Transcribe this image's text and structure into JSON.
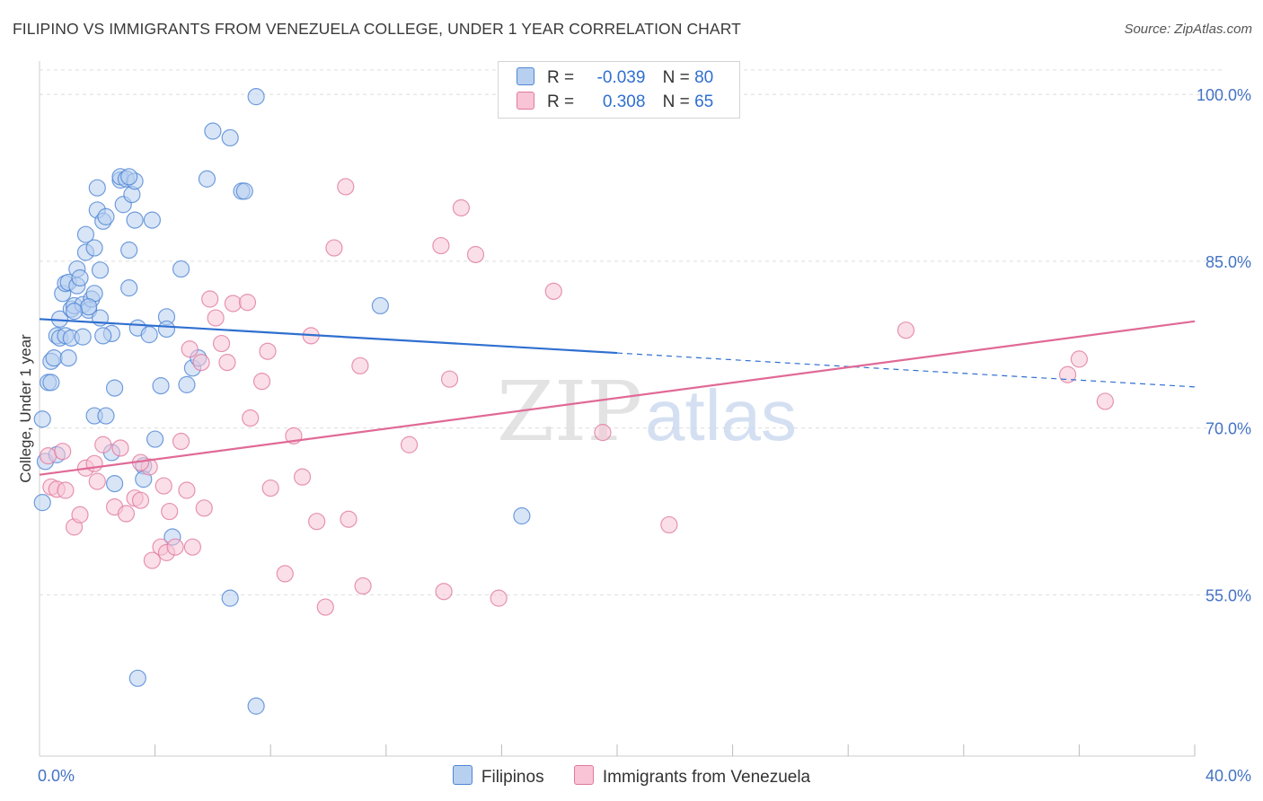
{
  "header": {
    "title": "FILIPINO VS IMMIGRANTS FROM VENEZUELA COLLEGE, UNDER 1 YEAR CORRELATION CHART",
    "source": "Source: ZipAtlas.com"
  },
  "legend": {
    "rows": [
      {
        "r_label": "R =",
        "r_value": "-0.039",
        "n_label": "N =",
        "n_value": "80"
      },
      {
        "r_label": "R =",
        "r_value": "0.308",
        "n_label": "N =",
        "n_value": "65"
      }
    ]
  },
  "watermark": {
    "part1": "ZIP",
    "part2": "atlas"
  },
  "colors": {
    "blue_fill": "#b8d0f0",
    "blue_stroke": "#4f86d4",
    "blue_line": "#2f6fd0",
    "pink_fill": "#f8c4d6",
    "pink_stroke": "#e07aa0",
    "pink_line": "#e06a96",
    "grid": "#dddddd",
    "tick_text": "#4472c4"
  },
  "chart_data": {
    "type": "scatter",
    "xlabel": "",
    "ylabel": "College, Under 1 year",
    "xlim": [
      0,
      40
    ],
    "ylim": [
      40.5,
      103
    ],
    "x_tick_labels": [
      {
        "value": 0,
        "label": "0.0%"
      },
      {
        "value": 40,
        "label": "40.0%"
      }
    ],
    "y_tick_labels": [
      {
        "value": 100,
        "label": "100.0%"
      },
      {
        "value": 85,
        "label": "85.0%"
      },
      {
        "value": 70,
        "label": "70.0%"
      },
      {
        "value": 55,
        "label": "55.0%"
      }
    ],
    "y_gridlines": [
      55,
      70,
      85,
      100
    ],
    "x_minor_ticks": [
      4,
      8,
      12,
      16,
      20,
      24,
      28,
      32,
      36,
      40
    ],
    "grid": true,
    "legend_position": "top-center",
    "series": [
      {
        "name": "Filipinos",
        "r": -0.039,
        "n": 80,
        "trend": {
          "x0": 0,
          "y0": 79.8,
          "x1": 40,
          "y1": 73.7,
          "solid_until": 20
        },
        "points": [
          [
            0.1,
            63.3
          ],
          [
            0.1,
            70.8
          ],
          [
            0.2,
            67.0
          ],
          [
            0.3,
            74.1
          ],
          [
            0.4,
            74.1
          ],
          [
            0.4,
            76.0
          ],
          [
            0.5,
            76.3
          ],
          [
            0.6,
            78.3
          ],
          [
            0.7,
            79.8
          ],
          [
            0.7,
            78.1
          ],
          [
            0.8,
            82.1
          ],
          [
            0.9,
            83.0
          ],
          [
            0.9,
            78.3
          ],
          [
            1.0,
            76.3
          ],
          [
            1.0,
            83.1
          ],
          [
            1.1,
            78.1
          ],
          [
            1.1,
            80.7
          ],
          [
            1.2,
            81.0
          ],
          [
            1.3,
            84.3
          ],
          [
            1.3,
            82.8
          ],
          [
            1.4,
            83.5
          ],
          [
            1.5,
            78.2
          ],
          [
            1.5,
            81.1
          ],
          [
            1.6,
            85.8
          ],
          [
            1.6,
            87.4
          ],
          [
            1.7,
            80.6
          ],
          [
            1.8,
            81.6
          ],
          [
            1.9,
            82.1
          ],
          [
            1.9,
            86.2
          ],
          [
            1.9,
            71.1
          ],
          [
            2.0,
            89.6
          ],
          [
            2.0,
            91.6
          ],
          [
            2.1,
            79.9
          ],
          [
            2.1,
            84.2
          ],
          [
            2.2,
            88.6
          ],
          [
            2.3,
            89.0
          ],
          [
            2.3,
            71.1
          ],
          [
            2.5,
            78.5
          ],
          [
            2.5,
            67.8
          ],
          [
            2.6,
            73.6
          ],
          [
            2.6,
            65.0
          ],
          [
            2.8,
            92.3
          ],
          [
            2.8,
            92.6
          ],
          [
            2.9,
            90.1
          ],
          [
            3.0,
            92.4
          ],
          [
            3.1,
            82.6
          ],
          [
            3.1,
            86.0
          ],
          [
            3.2,
            91.0
          ],
          [
            3.3,
            92.2
          ],
          [
            3.3,
            88.7
          ],
          [
            3.4,
            79.0
          ],
          [
            3.4,
            47.5
          ],
          [
            3.6,
            66.6
          ],
          [
            3.6,
            65.4
          ],
          [
            3.8,
            78.4
          ],
          [
            3.9,
            88.7
          ],
          [
            4.0,
            69.0
          ],
          [
            4.2,
            73.8
          ],
          [
            4.4,
            80.0
          ],
          [
            4.4,
            78.9
          ],
          [
            4.6,
            60.2
          ],
          [
            4.9,
            84.3
          ],
          [
            5.1,
            73.9
          ],
          [
            5.3,
            75.4
          ],
          [
            5.5,
            76.3
          ],
          [
            5.8,
            92.4
          ],
          [
            6.0,
            96.7
          ],
          [
            6.6,
            96.1
          ],
          [
            6.6,
            54.7
          ],
          [
            7.0,
            91.3
          ],
          [
            7.1,
            91.3
          ],
          [
            7.5,
            99.8
          ],
          [
            7.5,
            45.0
          ],
          [
            11.8,
            81.0
          ],
          [
            16.7,
            62.1
          ],
          [
            3.1,
            92.6
          ],
          [
            1.7,
            80.9
          ],
          [
            0.6,
            67.6
          ],
          [
            2.2,
            78.3
          ],
          [
            1.2,
            80.5
          ]
        ]
      },
      {
        "name": "Immigrants from Venezuela",
        "r": 0.308,
        "n": 65,
        "trend": {
          "x0": 0,
          "y0": 65.8,
          "x1": 40,
          "y1": 79.6
        },
        "points": [
          [
            0.3,
            67.5
          ],
          [
            0.4,
            64.7
          ],
          [
            0.6,
            64.5
          ],
          [
            0.8,
            67.9
          ],
          [
            0.9,
            64.4
          ],
          [
            1.2,
            61.1
          ],
          [
            1.4,
            62.2
          ],
          [
            1.6,
            66.4
          ],
          [
            1.9,
            66.8
          ],
          [
            2.0,
            65.2
          ],
          [
            2.2,
            68.5
          ],
          [
            2.6,
            62.9
          ],
          [
            2.8,
            68.2
          ],
          [
            3.0,
            62.3
          ],
          [
            3.3,
            63.7
          ],
          [
            3.5,
            63.5
          ],
          [
            3.8,
            66.5
          ],
          [
            3.9,
            58.1
          ],
          [
            4.2,
            59.3
          ],
          [
            4.3,
            64.8
          ],
          [
            4.4,
            58.8
          ],
          [
            4.5,
            62.5
          ],
          [
            4.7,
            59.3
          ],
          [
            4.9,
            68.8
          ],
          [
            5.1,
            64.4
          ],
          [
            5.2,
            77.1
          ],
          [
            5.3,
            59.3
          ],
          [
            5.6,
            75.9
          ],
          [
            5.7,
            62.8
          ],
          [
            5.9,
            81.6
          ],
          [
            6.1,
            79.9
          ],
          [
            6.3,
            77.6
          ],
          [
            6.5,
            75.9
          ],
          [
            6.7,
            81.2
          ],
          [
            7.2,
            81.3
          ],
          [
            7.3,
            70.9
          ],
          [
            7.7,
            74.2
          ],
          [
            7.9,
            76.9
          ],
          [
            8.0,
            64.6
          ],
          [
            8.5,
            56.9
          ],
          [
            8.8,
            69.3
          ],
          [
            9.1,
            65.6
          ],
          [
            9.4,
            78.3
          ],
          [
            9.6,
            61.6
          ],
          [
            9.9,
            53.9
          ],
          [
            10.2,
            86.2
          ],
          [
            10.6,
            91.7
          ],
          [
            10.7,
            61.8
          ],
          [
            11.1,
            75.6
          ],
          [
            11.2,
            55.8
          ],
          [
            12.8,
            68.5
          ],
          [
            13.9,
            86.4
          ],
          [
            14.0,
            55.3
          ],
          [
            14.2,
            74.4
          ],
          [
            14.6,
            89.8
          ],
          [
            15.1,
            85.6
          ],
          [
            15.9,
            54.7
          ],
          [
            17.8,
            82.3
          ],
          [
            19.5,
            69.6
          ],
          [
            21.8,
            61.3
          ],
          [
            30.0,
            78.8
          ],
          [
            36.0,
            76.2
          ],
          [
            35.6,
            74.8
          ],
          [
            36.9,
            72.4
          ],
          [
            3.5,
            66.9
          ]
        ]
      }
    ]
  },
  "bottom_legend": [
    {
      "label": "Filipinos"
    },
    {
      "label": "Immigrants from Venezuela"
    }
  ]
}
